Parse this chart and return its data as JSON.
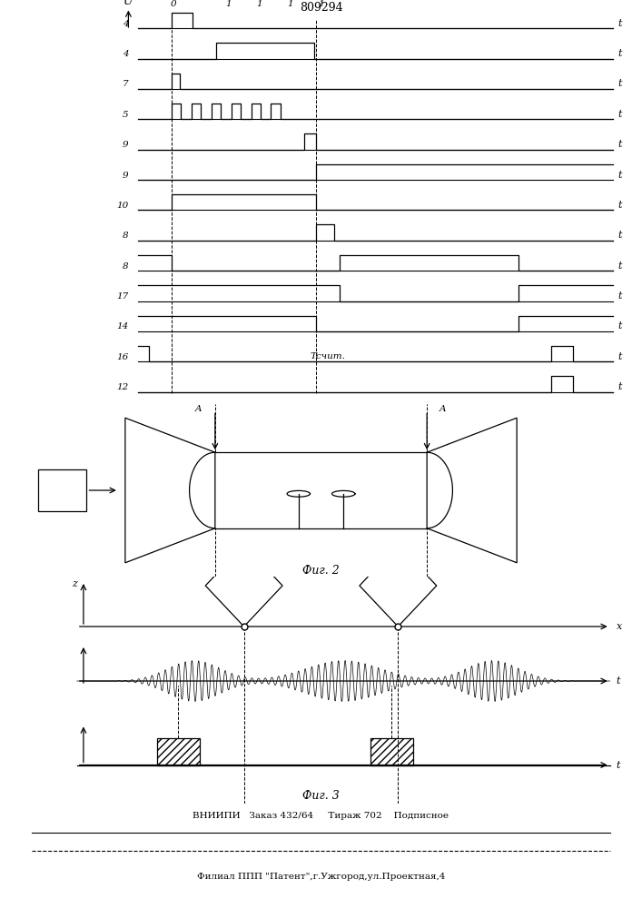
{
  "title": "809294",
  "fig2_label": "Фиг. 2",
  "fig3_label": "Фиг. 3",
  "bottom_line1": "ВНИИПИ   Заказ 432/64     Тираж 702    Подписное",
  "bottom_line2": "Филиал ППП \"Патент\",г.Ужгород,ул.Проектная,4",
  "signal_labels": [
    "4",
    "4",
    "7",
    "5",
    "9",
    "9",
    "10",
    "8",
    "8",
    "17",
    "14",
    "16",
    "12"
  ],
  "tschet_label": "Тсчит.",
  "background": "#ffffff",
  "line_color": "#000000"
}
